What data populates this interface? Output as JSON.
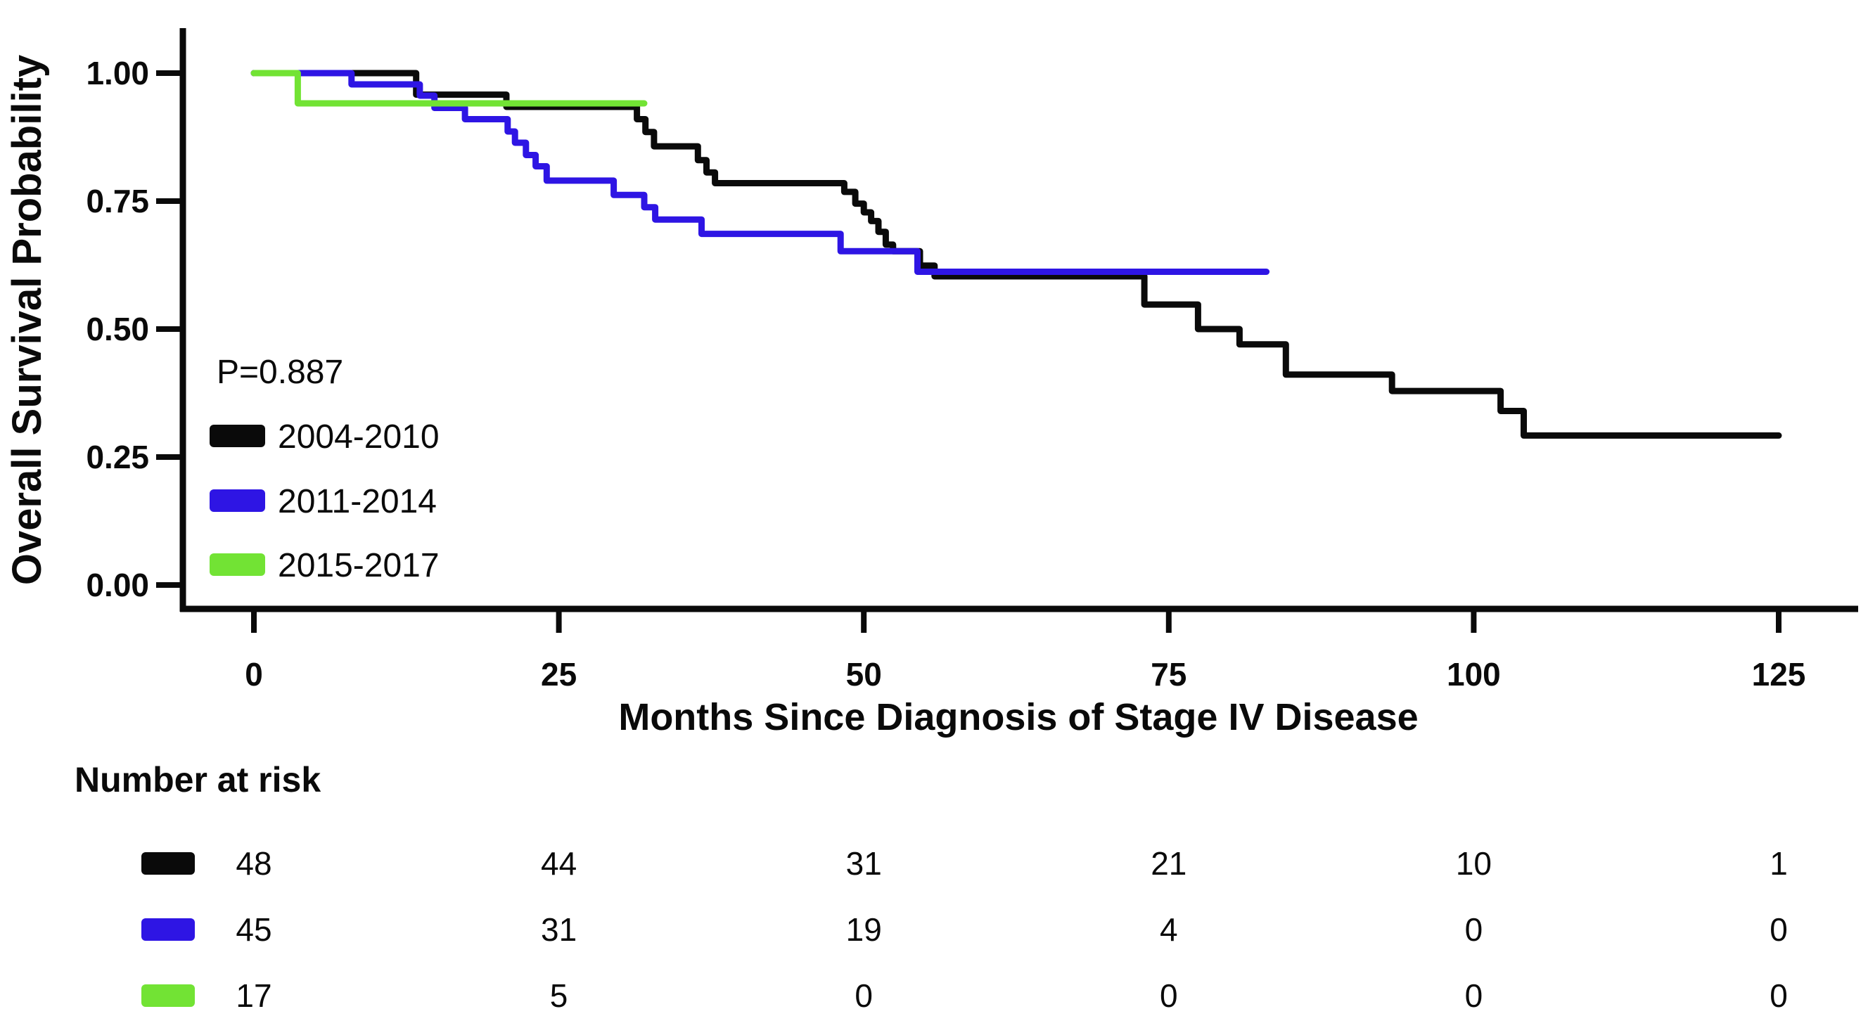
{
  "figure": {
    "p_value_label": "P=0.887",
    "x_axis_title": "Months Since Diagnosis of Stage IV Disease",
    "y_axis_title": "Overall Survival Probability",
    "risk_table_title": "Number at risk"
  },
  "chart_data": {
    "type": "line",
    "subtype": "kaplan-meier-step",
    "title": "",
    "xlabel": "Months Since Diagnosis of Stage IV Disease",
    "ylabel": "Overall Survival Probability",
    "xlim": [
      0,
      125
    ],
    "ylim": [
      0,
      1.0
    ],
    "grid": false,
    "legend_position": "inside-left-middle",
    "annotations": [
      "P=0.887"
    ],
    "x_ticks": [
      0,
      25,
      50,
      75,
      100,
      125
    ],
    "y_ticks": [
      {
        "v": 1.0,
        "label": "1.00"
      },
      {
        "v": 0.75,
        "label": "0.75"
      },
      {
        "v": 0.5,
        "label": "0.50"
      },
      {
        "v": 0.25,
        "label": "0.25"
      },
      {
        "v": 0.0,
        "label": "0.00"
      }
    ],
    "series": [
      {
        "name": "2004-2010",
        "color": "#0a0a0a",
        "points": [
          [
            0,
            1.0
          ],
          [
            13.3,
            0.958
          ],
          [
            20.7,
            0.934
          ],
          [
            31.4,
            0.91
          ],
          [
            32.1,
            0.885
          ],
          [
            32.8,
            0.857
          ],
          [
            36.4,
            0.83
          ],
          [
            37.1,
            0.806
          ],
          [
            37.8,
            0.785
          ],
          [
            48.4,
            0.768
          ],
          [
            49.3,
            0.745
          ],
          [
            50.0,
            0.728
          ],
          [
            50.6,
            0.711
          ],
          [
            51.2,
            0.69
          ],
          [
            51.8,
            0.665
          ],
          [
            52.4,
            0.652
          ],
          [
            54.6,
            0.624
          ],
          [
            55.8,
            0.603
          ],
          [
            73.0,
            0.548
          ],
          [
            77.4,
            0.5
          ],
          [
            80.8,
            0.47
          ],
          [
            84.6,
            0.411
          ],
          [
            93.3,
            0.379
          ],
          [
            102.2,
            0.34
          ],
          [
            104.1,
            0.292
          ],
          [
            125.0,
            0.292
          ]
        ]
      },
      {
        "name": "2011-2014",
        "color": "#2e15e4",
        "points": [
          [
            0,
            1.0
          ],
          [
            8.0,
            0.978
          ],
          [
            13.6,
            0.956
          ],
          [
            14.8,
            0.932
          ],
          [
            17.3,
            0.91
          ],
          [
            20.8,
            0.886
          ],
          [
            21.4,
            0.864
          ],
          [
            22.3,
            0.84
          ],
          [
            23.1,
            0.818
          ],
          [
            24.0,
            0.79
          ],
          [
            29.5,
            0.762
          ],
          [
            32.0,
            0.738
          ],
          [
            32.9,
            0.714
          ],
          [
            36.7,
            0.686
          ],
          [
            48.1,
            0.652
          ],
          [
            54.4,
            0.612
          ],
          [
            83.0,
            0.612
          ]
        ]
      },
      {
        "name": "2015-2017",
        "color": "#72e334",
        "points": [
          [
            0,
            1.0
          ],
          [
            3.6,
            0.941
          ],
          [
            32.0,
            0.941
          ]
        ]
      }
    ],
    "risk_table": {
      "title": "Number at risk",
      "times": [
        0,
        25,
        50,
        75,
        100,
        125
      ],
      "rows": [
        {
          "group": "2004-2010",
          "color": "#0a0a0a",
          "counts": [
            48,
            44,
            31,
            21,
            10,
            1
          ]
        },
        {
          "group": "2011-2014",
          "color": "#2e15e4",
          "counts": [
            45,
            31,
            19,
            4,
            0,
            0
          ]
        },
        {
          "group": "2015-2017",
          "color": "#72e334",
          "counts": [
            17,
            5,
            0,
            0,
            0,
            0
          ]
        }
      ]
    }
  }
}
